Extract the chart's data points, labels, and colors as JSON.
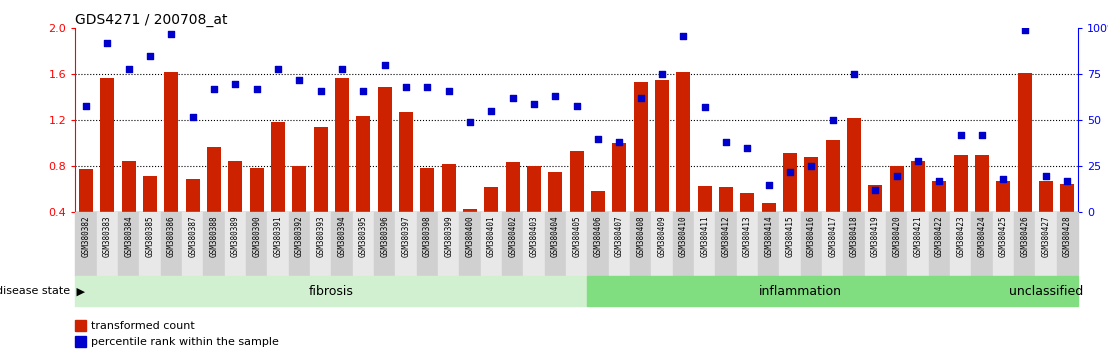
{
  "title": "GDS4271 / 200708_at",
  "samples": [
    "GSM380382",
    "GSM380383",
    "GSM380384",
    "GSM380385",
    "GSM380386",
    "GSM380387",
    "GSM380388",
    "GSM380389",
    "GSM380390",
    "GSM380391",
    "GSM380392",
    "GSM380393",
    "GSM380394",
    "GSM380395",
    "GSM380396",
    "GSM380397",
    "GSM380398",
    "GSM380399",
    "GSM380400",
    "GSM380401",
    "GSM380402",
    "GSM380403",
    "GSM380404",
    "GSM380405",
    "GSM380406",
    "GSM380407",
    "GSM380408",
    "GSM380409",
    "GSM380410",
    "GSM380411",
    "GSM380412",
    "GSM380413",
    "GSM380414",
    "GSM380415",
    "GSM380416",
    "GSM380417",
    "GSM380418",
    "GSM380419",
    "GSM380420",
    "GSM380421",
    "GSM380422",
    "GSM380423",
    "GSM380424",
    "GSM380425",
    "GSM380426",
    "GSM380427",
    "GSM380428"
  ],
  "bar_heights": [
    0.78,
    1.57,
    0.85,
    0.72,
    1.62,
    0.69,
    0.97,
    0.85,
    0.79,
    1.19,
    0.8,
    1.14,
    1.57,
    1.24,
    1.49,
    1.27,
    0.79,
    0.82,
    0.43,
    0.62,
    0.84,
    0.8,
    0.75,
    0.93,
    0.59,
    1.0,
    1.53,
    1.55,
    1.62,
    0.63,
    0.62,
    0.57,
    0.48,
    0.92,
    0.88,
    1.03,
    1.22,
    0.64,
    0.8,
    0.85,
    0.67,
    0.9,
    0.9,
    0.67,
    1.61,
    0.67,
    0.65
  ],
  "percentile_pct": [
    58,
    92,
    78,
    85,
    97,
    52,
    67,
    70,
    67,
    78,
    72,
    66,
    78,
    66,
    80,
    68,
    68,
    66,
    49,
    55,
    62,
    59,
    63,
    58,
    40,
    38,
    62,
    75,
    96,
    57,
    38,
    35,
    15,
    22,
    25,
    50,
    75,
    12,
    20,
    28,
    17,
    42,
    42,
    18,
    99,
    20,
    17
  ],
  "groups": [
    {
      "label": "fibrosis",
      "start": 0,
      "end": 23,
      "color": "#d0f0d0"
    },
    {
      "label": "inflammation",
      "start": 24,
      "end": 43,
      "color": "#80dd80"
    },
    {
      "label": "unclassified",
      "start": 44,
      "end": 46,
      "color": "#80dd80"
    }
  ],
  "bar_color": "#CC2200",
  "dot_color": "#0000CC",
  "left_ylim": [
    0.4,
    2.0
  ],
  "right_ylim": [
    0,
    100
  ],
  "left_yticks": [
    0.4,
    0.8,
    1.2,
    1.6,
    2.0
  ],
  "right_yticks": [
    0,
    25,
    50,
    75,
    100
  ],
  "dotted_hlines": [
    0.8,
    1.2,
    1.6
  ],
  "disease_state_label": "disease state",
  "legend_labels": [
    "transformed count",
    "percentile rank within the sample"
  ],
  "bg_color": "#ffffff",
  "tick_bg_even": "#d0d0d0",
  "tick_bg_odd": "#e8e8e8",
  "title_fontsize": 10,
  "xlabel_fontsize": 5.5,
  "tick_fontsize": 8
}
